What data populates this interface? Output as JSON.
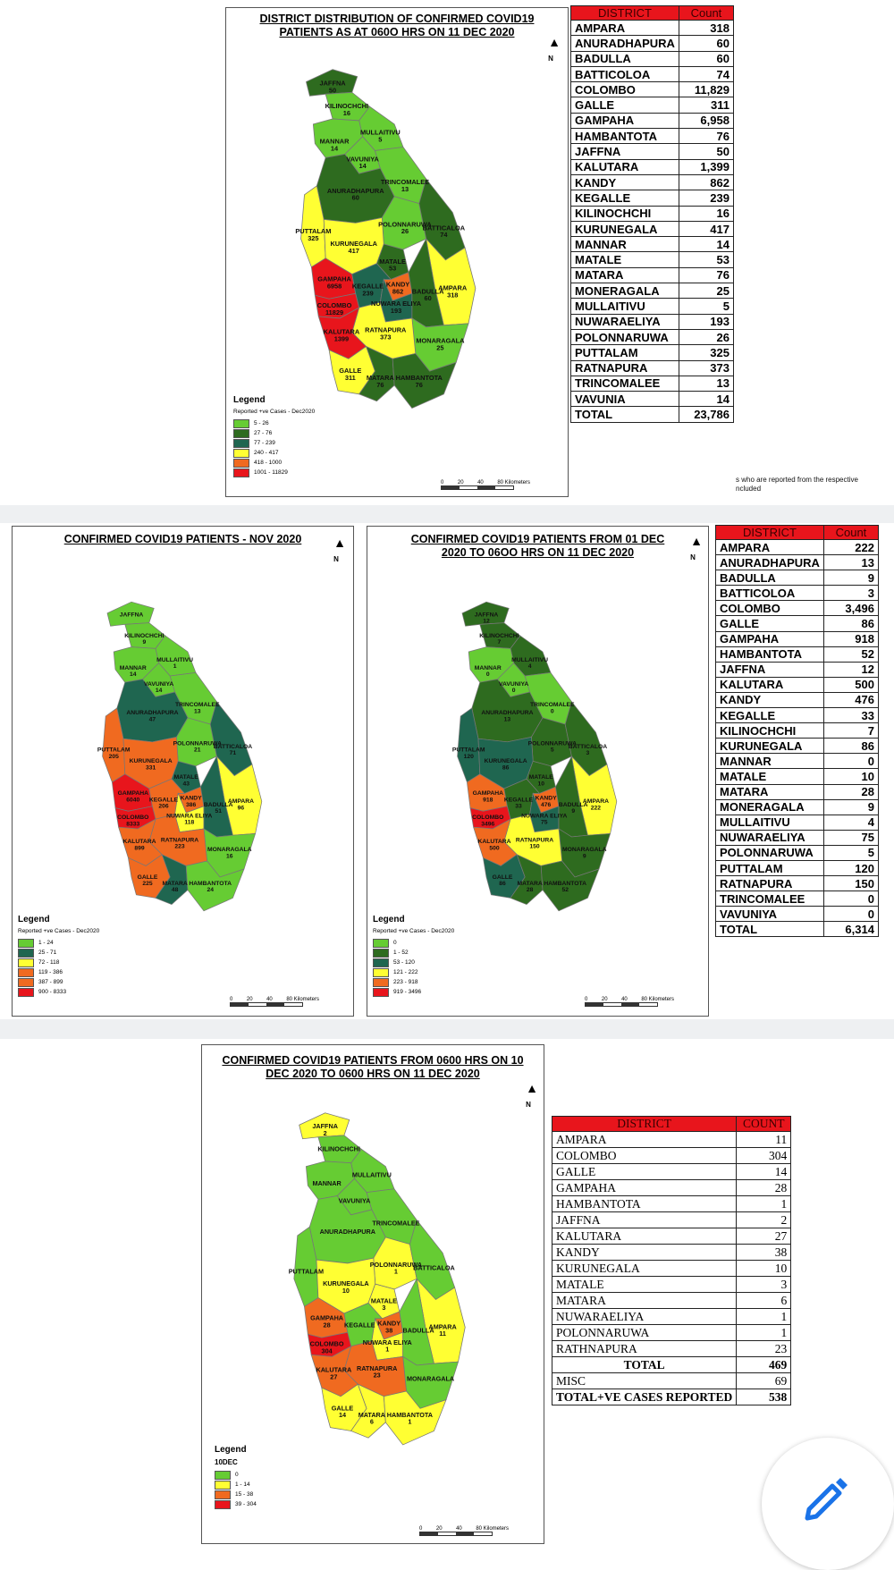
{
  "colors": {
    "c0": "#66cc33",
    "c1": "#2e6b1f",
    "c2": "#1f6650",
    "c3": "#ffff33",
    "c4": "#f06a20",
    "c5": "#e8151c",
    "header": "#e8151c"
  },
  "map1": {
    "title": "DISTRICT DISTRIBUTION OF CONFIRMED COVID19 PATIENTS AS AT 060O HRS ON 11 DEC 2020",
    "north": "N",
    "legend": {
      "title": "Legend",
      "subtitle": "Reported +ve Cases - Dec2020",
      "items": [
        {
          "label": "5 - 26",
          "color": "#66cc33"
        },
        {
          "label": "27 - 76",
          "color": "#2e6b1f"
        },
        {
          "label": "77 - 239",
          "color": "#1f6650"
        },
        {
          "label": "240 - 417",
          "color": "#ffff33"
        },
        {
          "label": "418 - 1000",
          "color": "#f06a20"
        },
        {
          "label": "1001 - 11829",
          "color": "#e8151c"
        }
      ]
    },
    "scale": {
      "t0": "0",
      "t1": "20",
      "t2": "40",
      "t3": "80 Kilometers"
    },
    "districts": [
      {
        "name": "JAFFNA",
        "value": "50",
        "cls": 1
      },
      {
        "name": "KILINOCHCHI",
        "value": "16",
        "cls": 0
      },
      {
        "name": "MULLAITIVU",
        "value": "5",
        "cls": 0
      },
      {
        "name": "MANNAR",
        "value": "14",
        "cls": 0
      },
      {
        "name": "VAVUNIYA",
        "value": "14",
        "cls": 0
      },
      {
        "name": "TRINCOMALEE",
        "value": "13",
        "cls": 0
      },
      {
        "name": "ANURADHAPURA",
        "value": "60",
        "cls": 1
      },
      {
        "name": "PUTTALAM",
        "value": "325",
        "cls": 3
      },
      {
        "name": "POLONNARUWA",
        "value": "26",
        "cls": 0
      },
      {
        "name": "BATTICALOA",
        "value": "74",
        "cls": 1
      },
      {
        "name": "KURUNEGALA",
        "value": "417",
        "cls": 3
      },
      {
        "name": "MATALE",
        "value": "53",
        "cls": 1
      },
      {
        "name": "KANDY",
        "value": "862",
        "cls": 4
      },
      {
        "name": "AMPARA",
        "value": "318",
        "cls": 3
      },
      {
        "name": "GAMPAHA",
        "value": "6958",
        "cls": 5
      },
      {
        "name": "KEGALLE",
        "value": "239",
        "cls": 2
      },
      {
        "name": "NUWARA ELIYA",
        "value": "193",
        "cls": 2
      },
      {
        "name": "BADULLA",
        "value": "60",
        "cls": 1
      },
      {
        "name": "COLOMBO",
        "value": "11829",
        "cls": 5
      },
      {
        "name": "MONARAGALA",
        "value": "25",
        "cls": 0
      },
      {
        "name": "RATNAPURA",
        "value": "373",
        "cls": 3
      },
      {
        "name": "KALUTARA",
        "value": "1399",
        "cls": 5
      },
      {
        "name": "GALLE",
        "value": "311",
        "cls": 3
      },
      {
        "name": "MATARA",
        "value": "76",
        "cls": 1
      },
      {
        "name": "HAMBANTOTA",
        "value": "76",
        "cls": 1
      }
    ]
  },
  "table1": {
    "headers": [
      "DISTRICT",
      "Count"
    ],
    "rows": [
      [
        "AMPARA",
        "318"
      ],
      [
        "ANURADHAPURA",
        "60"
      ],
      [
        "BADULLA",
        "60"
      ],
      [
        "BATTICOLOA",
        "74"
      ],
      [
        "COLOMBO",
        "11,829"
      ],
      [
        "GALLE",
        "311"
      ],
      [
        "GAMPAHA",
        "6,958"
      ],
      [
        "HAMBANTOTA",
        "76"
      ],
      [
        "JAFFNA",
        "50"
      ],
      [
        "KALUTARA",
        "1,399"
      ],
      [
        "KANDY",
        "862"
      ],
      [
        "KEGALLE",
        "239"
      ],
      [
        "KILINOCHCHI",
        "16"
      ],
      [
        "KURUNEGALA",
        "417"
      ],
      [
        "MANNAR",
        "14"
      ],
      [
        "MATALE",
        "53"
      ],
      [
        "MATARA",
        "76"
      ],
      [
        "MONERAGALA",
        "25"
      ],
      [
        "MULLAITIVU",
        "5"
      ],
      [
        "NUWARAELIYA",
        "193"
      ],
      [
        "POLONNARUWA",
        "26"
      ],
      [
        "PUTTALAM",
        "325"
      ],
      [
        "RATNAPURA",
        "373"
      ],
      [
        "TRINCOMALEE",
        "13"
      ],
      [
        "VAVUNIA",
        "14"
      ]
    ],
    "total": [
      "TOTAL",
      "23,786"
    ],
    "note_line1": "s who are reported from the respective",
    "note_line2": "ncluded"
  },
  "map2": {
    "title": "CONFIRMED COVID19 PATIENTS - NOV 2020",
    "north": "N",
    "legend": {
      "title": "Legend",
      "subtitle": "Reported +ve Cases - Dec2020",
      "items": [
        {
          "label": "1 - 24",
          "color": "#66cc33"
        },
        {
          "label": "25 - 71",
          "color": "#1f6650"
        },
        {
          "label": "72 - 118",
          "color": "#ffff33"
        },
        {
          "label": "119 - 386",
          "color": "#f06a20"
        },
        {
          "label": "387 - 899",
          "color": "#f06a20"
        },
        {
          "label": "900 - 8333",
          "color": "#e8151c"
        }
      ]
    },
    "scale": {
      "t0": "0",
      "t1": "20",
      "t2": "40",
      "t3": "80 Kilometers"
    },
    "districts": [
      {
        "name": "JAFFNA",
        "value": "",
        "cls": 0
      },
      {
        "name": "KILINOCHCHI",
        "value": "9",
        "cls": 0
      },
      {
        "name": "MULLAITIVU",
        "value": "1",
        "cls": 0
      },
      {
        "name": "MANNAR",
        "value": "14",
        "cls": 0
      },
      {
        "name": "VAVUNIYA",
        "value": "14",
        "cls": 0
      },
      {
        "name": "TRINCOMALEE",
        "value": "13",
        "cls": 0
      },
      {
        "name": "ANURADHAPURA",
        "value": "47",
        "cls": 2
      },
      {
        "name": "PUTTALAM",
        "value": "205",
        "cls": 4
      },
      {
        "name": "POLONNARUWA",
        "value": "21",
        "cls": 0
      },
      {
        "name": "BATTICALOA",
        "value": "71",
        "cls": 2
      },
      {
        "name": "KURUNEGALA",
        "value": "331",
        "cls": 4
      },
      {
        "name": "MATALE",
        "value": "43",
        "cls": 2
      },
      {
        "name": "KANDY",
        "value": "386",
        "cls": 4
      },
      {
        "name": "AMPARA",
        "value": "96",
        "cls": 3
      },
      {
        "name": "GAMPAHA",
        "value": "6040",
        "cls": 5
      },
      {
        "name": "KEGALLE",
        "value": "206",
        "cls": 4
      },
      {
        "name": "NUWARA ELIYA",
        "value": "118",
        "cls": 3
      },
      {
        "name": "BADULLA",
        "value": "51",
        "cls": 2
      },
      {
        "name": "COLOMBO",
        "value": "8333",
        "cls": 5
      },
      {
        "name": "MONARAGALA",
        "value": "16",
        "cls": 0
      },
      {
        "name": "RATNAPURA",
        "value": "223",
        "cls": 4
      },
      {
        "name": "KALUTARA",
        "value": "899",
        "cls": 4
      },
      {
        "name": "GALLE",
        "value": "225",
        "cls": 4
      },
      {
        "name": "MATARA",
        "value": "48",
        "cls": 2
      },
      {
        "name": "HAMBANTOTA",
        "value": "24",
        "cls": 0
      }
    ]
  },
  "map3": {
    "title": "CONFIRMED COVID19 PATIENTS FROM 01 DEC 2020 TO 06OO HRS ON 11 DEC 2020",
    "north": "N",
    "legend": {
      "title": "Legend",
      "subtitle": "Reported +ve Cases - Dec2020",
      "items": [
        {
          "label": "0",
          "color": "#66cc33"
        },
        {
          "label": "1 - 52",
          "color": "#2e6b1f"
        },
        {
          "label": "53 - 120",
          "color": "#1f6650"
        },
        {
          "label": "121 - 222",
          "color": "#ffff33"
        },
        {
          "label": "223 - 918",
          "color": "#f06a20"
        },
        {
          "label": "919 - 3496",
          "color": "#e8151c"
        }
      ]
    },
    "scale": {
      "t0": "0",
      "t1": "20",
      "t2": "40",
      "t3": "80 Kilometers"
    },
    "districts": [
      {
        "name": "JAFFNA",
        "value": "12",
        "cls": 1
      },
      {
        "name": "KILINOCHCHI",
        "value": "7",
        "cls": 1
      },
      {
        "name": "MULLAITIVU",
        "value": "4",
        "cls": 1
      },
      {
        "name": "MANNAR",
        "value": "0",
        "cls": 0
      },
      {
        "name": "VAVUNIYA",
        "value": "0",
        "cls": 0
      },
      {
        "name": "TRINCOMALEE",
        "value": "0",
        "cls": 0
      },
      {
        "name": "ANURADHAPURA",
        "value": "13",
        "cls": 1
      },
      {
        "name": "PUTTALAM",
        "value": "120",
        "cls": 2
      },
      {
        "name": "POLONNARUWA",
        "value": "5",
        "cls": 1
      },
      {
        "name": "BATTICALOA",
        "value": "3",
        "cls": 1
      },
      {
        "name": "KURUNEGALA",
        "value": "86",
        "cls": 2
      },
      {
        "name": "MATALE",
        "value": "10",
        "cls": 1
      },
      {
        "name": "KANDY",
        "value": "476",
        "cls": 4
      },
      {
        "name": "AMPARA",
        "value": "222",
        "cls": 3
      },
      {
        "name": "GAMPAHA",
        "value": "918",
        "cls": 4
      },
      {
        "name": "KEGALLE",
        "value": "33",
        "cls": 1
      },
      {
        "name": "NUWARA ELIYA",
        "value": "75",
        "cls": 2
      },
      {
        "name": "BADULLA",
        "value": "9",
        "cls": 1
      },
      {
        "name": "COLOMBO",
        "value": "3496",
        "cls": 5
      },
      {
        "name": "MONARAGALA",
        "value": "9",
        "cls": 1
      },
      {
        "name": "RATNAPURA",
        "value": "150",
        "cls": 3
      },
      {
        "name": "KALUTARA",
        "value": "500",
        "cls": 4
      },
      {
        "name": "GALLE",
        "value": "86",
        "cls": 2
      },
      {
        "name": "MATARA",
        "value": "28",
        "cls": 1
      },
      {
        "name": "HAMBANTOTA",
        "value": "52",
        "cls": 1
      }
    ]
  },
  "table2": {
    "headers": [
      "DISTRICT",
      "Count"
    ],
    "rows": [
      [
        "AMPARA",
        "222"
      ],
      [
        "ANURADHAPURA",
        "13"
      ],
      [
        "BADULLA",
        "9"
      ],
      [
        "BATTICOLOA",
        "3"
      ],
      [
        "COLOMBO",
        "3,496"
      ],
      [
        "GALLE",
        "86"
      ],
      [
        "GAMPAHA",
        "918"
      ],
      [
        "HAMBANTOTA",
        "52"
      ],
      [
        "JAFFNA",
        "12"
      ],
      [
        "KALUTARA",
        "500"
      ],
      [
        "KANDY",
        "476"
      ],
      [
        "KEGALLE",
        "33"
      ],
      [
        "KILINOCHCHI",
        "7"
      ],
      [
        "KURUNEGALA",
        "86"
      ],
      [
        "MANNAR",
        "0"
      ],
      [
        "MATALE",
        "10"
      ],
      [
        "MATARA",
        "28"
      ],
      [
        "MONERAGALA",
        "9"
      ],
      [
        "MULLAITIVU",
        "4"
      ],
      [
        "NUWARAELIYA",
        "75"
      ],
      [
        "POLONNARUWA",
        "5"
      ],
      [
        "PUTTALAM",
        "120"
      ],
      [
        "RATNAPURA",
        "150"
      ],
      [
        "TRINCOMALEE",
        "0"
      ],
      [
        "VAVUNIYA",
        "0"
      ]
    ],
    "total": [
      "TOTAL",
      "6,314"
    ]
  },
  "map4": {
    "title": "CONFIRMED COVID19 PATIENTS FROM 0600 HRS ON 10 DEC 2020 TO 0600 HRS ON 11 DEC 2020",
    "north": "N",
    "legend": {
      "title": "Legend",
      "subtitle": "10DEC",
      "items": [
        {
          "label": "0",
          "color": "#66cc33"
        },
        {
          "label": "1 - 14",
          "color": "#ffff33"
        },
        {
          "label": "15 - 38",
          "color": "#f06a20"
        },
        {
          "label": "39 - 304",
          "color": "#e8151c"
        }
      ]
    },
    "scale": {
      "t0": "0",
      "t1": "20",
      "t2": "40",
      "t3": "80 Kilometers"
    },
    "districts": [
      {
        "name": "JAFFNA",
        "value": "2",
        "cls": 3
      },
      {
        "name": "KILINOCHCHI",
        "value": "",
        "cls": 0
      },
      {
        "name": "MULLAITIVU",
        "value": "",
        "cls": 0
      },
      {
        "name": "MANNAR",
        "value": "",
        "cls": 0
      },
      {
        "name": "VAVUNIYA",
        "value": "",
        "cls": 0
      },
      {
        "name": "TRINCOMALEE",
        "value": "",
        "cls": 0
      },
      {
        "name": "ANURADHAPURA",
        "value": "",
        "cls": 0
      },
      {
        "name": "PUTTALAM",
        "value": "",
        "cls": 0
      },
      {
        "name": "POLONNARUWA",
        "value": "1",
        "cls": 3
      },
      {
        "name": "BATTICALOA",
        "value": "",
        "cls": 0
      },
      {
        "name": "KURUNEGALA",
        "value": "10",
        "cls": 3
      },
      {
        "name": "MATALE",
        "value": "3",
        "cls": 3
      },
      {
        "name": "KANDY",
        "value": "38",
        "cls": 4
      },
      {
        "name": "AMPARA",
        "value": "11",
        "cls": 3
      },
      {
        "name": "GAMPAHA",
        "value": "28",
        "cls": 4
      },
      {
        "name": "KEGALLE",
        "value": "",
        "cls": 0
      },
      {
        "name": "NUWARA ELIYA",
        "value": "1",
        "cls": 3
      },
      {
        "name": "BADULLA",
        "value": "",
        "cls": 0
      },
      {
        "name": "COLOMBO",
        "value": "304",
        "cls": 5
      },
      {
        "name": "MONARAGALA",
        "value": "",
        "cls": 0
      },
      {
        "name": "RATNAPURA",
        "value": "23",
        "cls": 4
      },
      {
        "name": "KALUTARA",
        "value": "27",
        "cls": 4
      },
      {
        "name": "GALLE",
        "value": "14",
        "cls": 3
      },
      {
        "name": "MATARA",
        "value": "6",
        "cls": 3
      },
      {
        "name": "HAMBANTOTA",
        "value": "1",
        "cls": 3
      }
    ]
  },
  "table3": {
    "headers": [
      "DISTRICT",
      "COUNT"
    ],
    "rows": [
      [
        "AMPARA",
        "11"
      ],
      [
        "COLOMBO",
        "304"
      ],
      [
        "GALLE",
        "14"
      ],
      [
        "GAMPAHA",
        "28"
      ],
      [
        "HAMBANTOTA",
        "1"
      ],
      [
        "JAFFNA",
        "2"
      ],
      [
        "KALUTARA",
        "27"
      ],
      [
        "KANDY",
        "38"
      ],
      [
        "KURUNEGALA",
        "10"
      ],
      [
        "MATALE",
        "3"
      ],
      [
        "MATARA",
        "6"
      ],
      [
        "NUWARAELIYA",
        "1"
      ],
      [
        "POLONNARUWA",
        "1"
      ],
      [
        "RATHNAPURA",
        "23"
      ]
    ],
    "total": [
      "TOTAL",
      "469"
    ],
    "misc": [
      "MISC",
      "69"
    ],
    "grand": [
      "TOTAL+VE CASES REPORTED",
      "538"
    ]
  },
  "fab": {
    "icon": "pencil-icon"
  }
}
